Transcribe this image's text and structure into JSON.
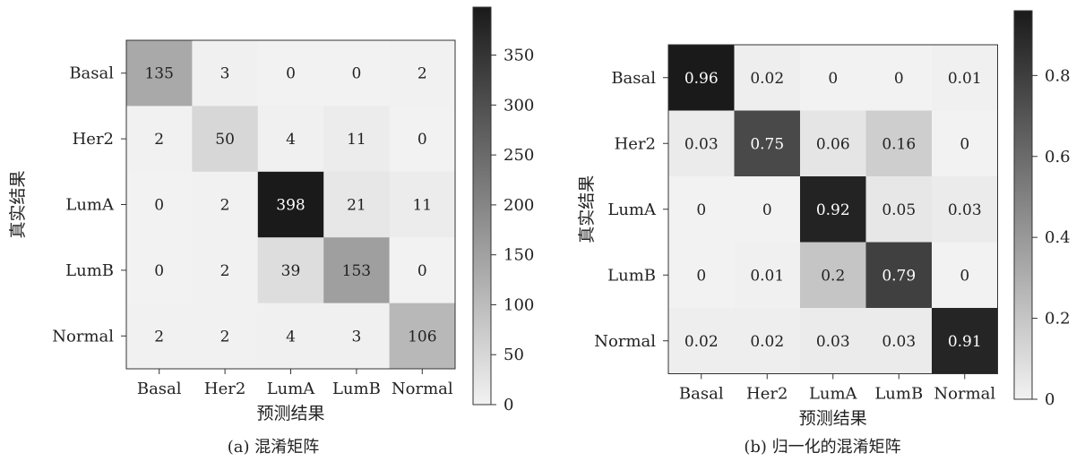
{
  "chart_data": [
    {
      "type": "heatmap",
      "caption": "(a) 混淆矩阵",
      "xlabel": "预测结果",
      "ylabel": "真实结果",
      "x_categories": [
        "Basal",
        "Her2",
        "LumA",
        "LumB",
        "Normal"
      ],
      "y_categories": [
        "Basal",
        "Her2",
        "LumA",
        "LumB",
        "Normal"
      ],
      "values": [
        [
          135,
          3,
          0,
          0,
          2
        ],
        [
          2,
          50,
          4,
          11,
          0
        ],
        [
          0,
          2,
          398,
          21,
          11
        ],
        [
          0,
          2,
          39,
          153,
          0
        ],
        [
          2,
          2,
          4,
          3,
          106
        ]
      ],
      "value_labels": [
        [
          "135",
          "3",
          "0",
          "0",
          "2"
        ],
        [
          "2",
          "50",
          "4",
          "11",
          "0"
        ],
        [
          "0",
          "2",
          "398",
          "21",
          "11"
        ],
        [
          "0",
          "2",
          "39",
          "153",
          "0"
        ],
        [
          "2",
          "2",
          "4",
          "3",
          "106"
        ]
      ],
      "colorbar": {
        "min": 0,
        "max": 398,
        "ticks": [
          0,
          50,
          100,
          150,
          200,
          250,
          300,
          350
        ]
      },
      "colormap": "greys",
      "grid": false
    },
    {
      "type": "heatmap",
      "caption": "(b) 归一化的混淆矩阵",
      "xlabel": "预测结果",
      "ylabel": "真实结果",
      "x_categories": [
        "Basal",
        "Her2",
        "LumA",
        "LumB",
        "Normal"
      ],
      "y_categories": [
        "Basal",
        "Her2",
        "LumA",
        "LumB",
        "Normal"
      ],
      "values": [
        [
          0.96,
          0.02,
          0,
          0,
          0.01
        ],
        [
          0.03,
          0.75,
          0.06,
          0.16,
          0
        ],
        [
          0,
          0,
          0.92,
          0.05,
          0.03
        ],
        [
          0,
          0.01,
          0.2,
          0.79,
          0
        ],
        [
          0.02,
          0.02,
          0.03,
          0.03,
          0.91
        ]
      ],
      "value_labels": [
        [
          "0.96",
          "0.02",
          "0",
          "0",
          "0.01"
        ],
        [
          "0.03",
          "0.75",
          "0.06",
          "0.16",
          "0"
        ],
        [
          "0",
          "0",
          "0.92",
          "0.05",
          "0.03"
        ],
        [
          "0",
          "0.01",
          "0.2",
          "0.79",
          "0"
        ],
        [
          "0.02",
          "0.02",
          "0.03",
          "0.03",
          "0.91"
        ]
      ],
      "colorbar": {
        "min": 0,
        "max": 0.96,
        "ticks": [
          0,
          0.2,
          0.4,
          0.6,
          0.8
        ]
      },
      "colormap": "greys",
      "grid": false
    }
  ]
}
